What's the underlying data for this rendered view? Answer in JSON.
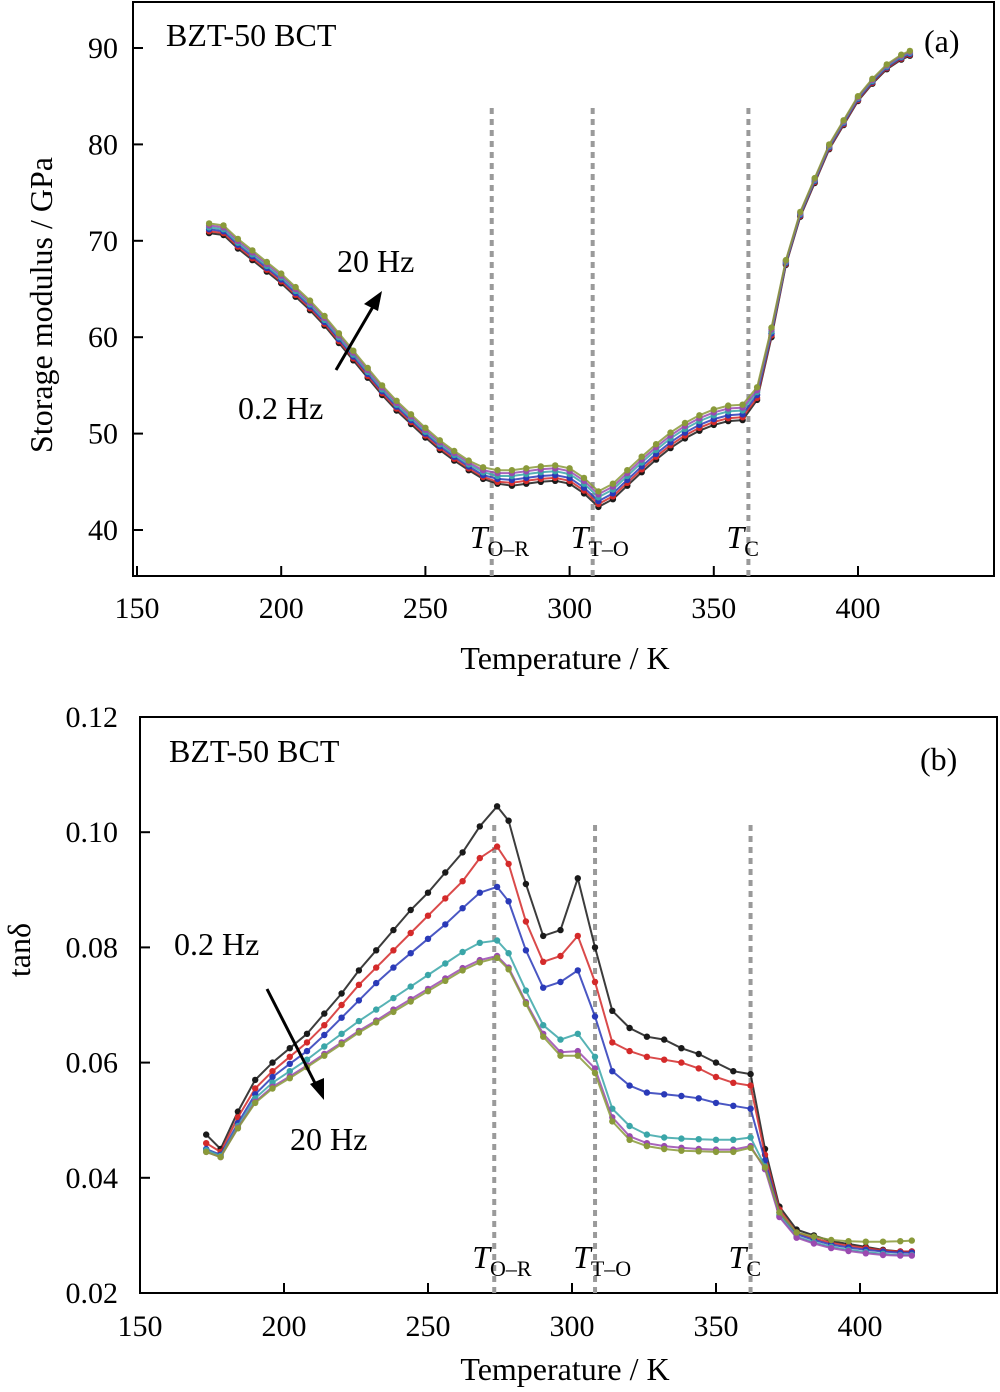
{
  "chart_data": [
    {
      "type": "line",
      "panel": "(a)",
      "title": "BZT-50 BCT",
      "xlabel": "Temperature / K",
      "ylabel": "Storage modulus / GPa",
      "xlim": [
        150,
        450
      ],
      "ylim": [
        35,
        95
      ],
      "x_ticks": [
        150,
        200,
        250,
        300,
        350,
        400
      ],
      "y_ticks": [
        40,
        50,
        60,
        70,
        80,
        90
      ],
      "grid": false,
      "colors": [
        "#1a1a1a",
        "#d42a2a",
        "#2a3ab8",
        "#3aa6a8",
        "#9a4ab0",
        "#8a9a3a"
      ],
      "frequency_arrow": {
        "from_label": "0.2 Hz",
        "to_label": "20 Hz",
        "direction": "up"
      },
      "transitions": [
        {
          "symbol": "T",
          "subscript": "O–R",
          "x": 273
        },
        {
          "symbol": "T",
          "subscript": "T–O",
          "x": 308
        },
        {
          "symbol": "T",
          "subscript": "C",
          "x": 362
        }
      ],
      "x": [
        175,
        180,
        185,
        190,
        195,
        200,
        205,
        210,
        215,
        220,
        225,
        230,
        235,
        240,
        245,
        250,
        255,
        260,
        265,
        270,
        275,
        280,
        285,
        290,
        295,
        300,
        305,
        310,
        315,
        320,
        325,
        330,
        335,
        340,
        345,
        350,
        355,
        360,
        365,
        370,
        375,
        380,
        385,
        390,
        395,
        400,
        405,
        410,
        415,
        418
      ],
      "series": [
        {
          "values": [
            70.8,
            70.6,
            69.2,
            68.0,
            66.8,
            65.6,
            64.2,
            62.8,
            61.2,
            59.4,
            57.6,
            55.8,
            54.0,
            52.4,
            51.0,
            49.6,
            48.3,
            47.2,
            46.2,
            45.3,
            44.8,
            44.6,
            44.8,
            45.0,
            45.1,
            44.8,
            43.8,
            42.4,
            43.2,
            44.6,
            46.0,
            47.3,
            48.5,
            49.5,
            50.3,
            50.9,
            51.3,
            51.4,
            53.5,
            60.0,
            67.5,
            72.5,
            76.0,
            79.5,
            82.0,
            84.5,
            86.3,
            87.8,
            88.8,
            89.2
          ]
        },
        {
          "values": [
            71.0,
            70.8,
            69.4,
            68.2,
            67.0,
            65.8,
            64.4,
            63.0,
            61.4,
            59.6,
            57.8,
            56.0,
            54.2,
            52.6,
            51.2,
            49.8,
            48.5,
            47.4,
            46.4,
            45.5,
            45.0,
            44.9,
            45.1,
            45.3,
            45.4,
            45.1,
            44.1,
            42.7,
            43.5,
            44.9,
            46.3,
            47.6,
            48.8,
            49.8,
            50.6,
            51.2,
            51.6,
            51.7,
            53.7,
            60.2,
            67.6,
            72.6,
            76.1,
            79.6,
            82.1,
            84.6,
            86.4,
            87.9,
            88.9,
            89.3
          ]
        },
        {
          "values": [
            71.2,
            71.0,
            69.6,
            68.4,
            67.2,
            66.0,
            64.6,
            63.2,
            61.6,
            59.8,
            58.0,
            56.2,
            54.4,
            52.8,
            51.4,
            50.0,
            48.7,
            47.6,
            46.6,
            45.7,
            45.3,
            45.2,
            45.4,
            45.6,
            45.7,
            45.4,
            44.4,
            43.0,
            43.8,
            45.2,
            46.6,
            47.9,
            49.1,
            50.1,
            50.9,
            51.5,
            51.9,
            52.0,
            54.0,
            60.4,
            67.7,
            72.7,
            76.2,
            79.7,
            82.2,
            84.7,
            86.5,
            88.0,
            89.0,
            89.4
          ]
        },
        {
          "values": [
            71.4,
            71.2,
            69.8,
            68.6,
            67.4,
            66.2,
            64.8,
            63.4,
            61.8,
            60.0,
            58.2,
            56.4,
            54.6,
            53.0,
            51.6,
            50.2,
            48.9,
            47.8,
            46.8,
            46.0,
            45.6,
            45.6,
            45.8,
            46.0,
            46.1,
            45.8,
            44.8,
            43.4,
            44.2,
            45.6,
            47.0,
            48.3,
            49.5,
            50.5,
            51.3,
            51.9,
            52.3,
            52.4,
            54.3,
            60.6,
            67.8,
            72.8,
            76.3,
            79.8,
            82.3,
            84.8,
            86.6,
            88.1,
            89.1,
            89.5
          ]
        },
        {
          "values": [
            71.6,
            71.4,
            70.0,
            68.8,
            67.6,
            66.4,
            65.0,
            63.6,
            62.0,
            60.2,
            58.4,
            56.6,
            54.8,
            53.2,
            51.8,
            50.4,
            49.1,
            48.0,
            47.0,
            46.2,
            45.9,
            45.9,
            46.1,
            46.3,
            46.4,
            46.1,
            45.1,
            43.7,
            44.5,
            45.9,
            47.3,
            48.6,
            49.8,
            50.8,
            51.6,
            52.2,
            52.6,
            52.7,
            54.5,
            60.8,
            67.9,
            72.9,
            76.4,
            79.9,
            82.4,
            84.9,
            86.7,
            88.2,
            89.2,
            89.6
          ]
        },
        {
          "values": [
            71.8,
            71.6,
            70.2,
            69.0,
            67.8,
            66.6,
            65.2,
            63.8,
            62.2,
            60.4,
            58.6,
            56.8,
            55.0,
            53.4,
            52.0,
            50.6,
            49.3,
            48.2,
            47.2,
            46.5,
            46.2,
            46.2,
            46.4,
            46.6,
            46.7,
            46.4,
            45.4,
            44.0,
            44.8,
            46.2,
            47.6,
            48.9,
            50.1,
            51.1,
            51.9,
            52.5,
            52.9,
            53.0,
            54.8,
            61.0,
            68.0,
            73.0,
            76.5,
            80.0,
            82.5,
            85.0,
            86.8,
            88.3,
            89.3,
            89.7
          ]
        }
      ]
    },
    {
      "type": "line",
      "panel": "(b)",
      "title": "BZT-50 BCT",
      "xlabel": "Temperature / K",
      "ylabel": "tanδ",
      "xlim": [
        150,
        450
      ],
      "ylim": [
        0.02,
        0.12
      ],
      "x_ticks": [
        150,
        200,
        250,
        300,
        350,
        400
      ],
      "y_ticks": [
        0.02,
        0.04,
        0.06,
        0.08,
        0.1,
        0.12
      ],
      "grid": false,
      "colors": [
        "#1a1a1a",
        "#d42a2a",
        "#2a3ab8",
        "#3aa6a8",
        "#9a4ab0",
        "#8a9a3a"
      ],
      "frequency_arrow": {
        "from_label": "0.2 Hz",
        "to_label": "20 Hz",
        "direction": "down"
      },
      "transitions": [
        {
          "symbol": "T",
          "subscript": "O–R",
          "x": 273
        },
        {
          "symbol": "T",
          "subscript": "T–O",
          "x": 308
        },
        {
          "symbol": "T",
          "subscript": "C",
          "x": 362
        }
      ],
      "x": [
        173,
        178,
        184,
        190,
        196,
        202,
        208,
        214,
        220,
        226,
        232,
        238,
        244,
        250,
        256,
        262,
        268,
        274,
        278,
        284,
        290,
        296,
        302,
        308,
        314,
        320,
        326,
        332,
        338,
        344,
        350,
        356,
        362,
        367,
        372,
        378,
        384,
        390,
        396,
        402,
        408,
        414,
        418
      ],
      "series": [
        {
          "values": [
            0.0475,
            0.045,
            0.0515,
            0.057,
            0.06,
            0.0625,
            0.065,
            0.0685,
            0.072,
            0.076,
            0.0795,
            0.083,
            0.0865,
            0.0895,
            0.093,
            0.0965,
            0.101,
            0.1045,
            0.102,
            0.091,
            0.082,
            0.083,
            0.092,
            0.08,
            0.069,
            0.066,
            0.0645,
            0.064,
            0.0625,
            0.0615,
            0.06,
            0.0585,
            0.058,
            0.045,
            0.035,
            0.031,
            0.03,
            0.029,
            0.0285,
            0.028,
            0.0275,
            0.0272,
            0.0272
          ]
        },
        {
          "values": [
            0.046,
            0.0445,
            0.0505,
            0.0555,
            0.0585,
            0.061,
            0.0635,
            0.0665,
            0.07,
            0.0735,
            0.0765,
            0.0795,
            0.0825,
            0.0855,
            0.0885,
            0.0915,
            0.0955,
            0.0975,
            0.0945,
            0.0845,
            0.0775,
            0.0785,
            0.082,
            0.074,
            0.0635,
            0.062,
            0.061,
            0.0605,
            0.06,
            0.059,
            0.0575,
            0.0565,
            0.056,
            0.044,
            0.0345,
            0.0305,
            0.0295,
            0.0287,
            0.0282,
            0.0278,
            0.0274,
            0.0272,
            0.0272
          ]
        },
        {
          "values": [
            0.045,
            0.044,
            0.0495,
            0.0545,
            0.0575,
            0.0598,
            0.062,
            0.0648,
            0.0678,
            0.0708,
            0.0738,
            0.0765,
            0.079,
            0.0815,
            0.084,
            0.0868,
            0.0895,
            0.0905,
            0.088,
            0.0795,
            0.073,
            0.074,
            0.076,
            0.068,
            0.0585,
            0.056,
            0.0548,
            0.0545,
            0.0542,
            0.0538,
            0.053,
            0.0525,
            0.052,
            0.043,
            0.034,
            0.0302,
            0.0292,
            0.0284,
            0.0279,
            0.0275,
            0.0272,
            0.027,
            0.027
          ]
        },
        {
          "values": [
            0.0448,
            0.0438,
            0.049,
            0.0538,
            0.0565,
            0.0585,
            0.0605,
            0.0628,
            0.065,
            0.0672,
            0.0692,
            0.0712,
            0.0732,
            0.0752,
            0.0772,
            0.0792,
            0.0808,
            0.0812,
            0.079,
            0.0725,
            0.0665,
            0.064,
            0.065,
            0.061,
            0.052,
            0.049,
            0.0475,
            0.047,
            0.0468,
            0.0467,
            0.0466,
            0.0466,
            0.047,
            0.042,
            0.0335,
            0.0298,
            0.0288,
            0.028,
            0.0275,
            0.0271,
            0.0268,
            0.0266,
            0.0266
          ]
        },
        {
          "values": [
            0.0445,
            0.0436,
            0.0487,
            0.0532,
            0.0558,
            0.0576,
            0.0595,
            0.0615,
            0.0635,
            0.0655,
            0.0673,
            0.0692,
            0.071,
            0.0728,
            0.0746,
            0.0764,
            0.0778,
            0.0785,
            0.0765,
            0.0705,
            0.065,
            0.0618,
            0.062,
            0.059,
            0.0505,
            0.0472,
            0.046,
            0.0455,
            0.0452,
            0.045,
            0.0449,
            0.0449,
            0.0455,
            0.0415,
            0.0332,
            0.0296,
            0.0286,
            0.0278,
            0.0273,
            0.0269,
            0.0266,
            0.0265,
            0.0265
          ]
        },
        {
          "values": [
            0.0445,
            0.0436,
            0.0486,
            0.053,
            0.0555,
            0.0573,
            0.0592,
            0.0612,
            0.0632,
            0.0652,
            0.067,
            0.0688,
            0.0706,
            0.0724,
            0.0742,
            0.076,
            0.0774,
            0.0782,
            0.0762,
            0.0702,
            0.0645,
            0.0612,
            0.0612,
            0.0582,
            0.0498,
            0.0466,
            0.0455,
            0.045,
            0.0447,
            0.0446,
            0.0445,
            0.0445,
            0.0452,
            0.0418,
            0.034,
            0.0305,
            0.0298,
            0.0292,
            0.029,
            0.0289,
            0.0289,
            0.029,
            0.0291
          ]
        }
      ]
    }
  ]
}
